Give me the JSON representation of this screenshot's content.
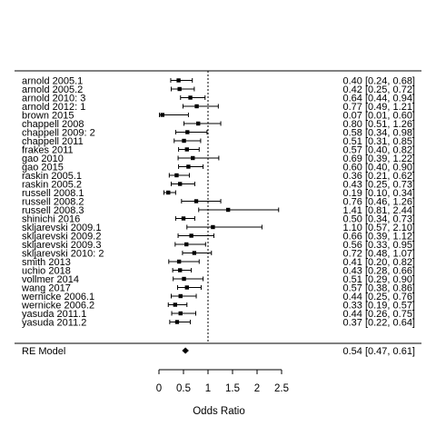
{
  "chart_data": {
    "type": "forest",
    "xlabel": "Odds Ratio",
    "x_ticks": [
      0,
      0.5,
      1,
      1.5,
      2,
      2.5
    ],
    "x_tick_labels": [
      "0",
      "0.5",
      "1",
      "1.5",
      "2",
      "2.5"
    ],
    "xlim": [
      0,
      2.5
    ],
    "reference_line": 1,
    "studies": [
      {
        "label": "arnold 2005.1",
        "or": 0.4,
        "lo": 0.24,
        "hi": 0.68,
        "text": "0.40 [0.24, 0.68]"
      },
      {
        "label": "arnold 2005.2",
        "or": 0.42,
        "lo": 0.25,
        "hi": 0.72,
        "text": "0.42 [0.25, 0.72]"
      },
      {
        "label": "arnold 2010: 3",
        "or": 0.64,
        "lo": 0.44,
        "hi": 0.94,
        "text": "0.64 [0.44, 0.94]"
      },
      {
        "label": "arnold 2012: 1",
        "or": 0.77,
        "lo": 0.49,
        "hi": 1.21,
        "text": "0.77 [0.49, 1.21]"
      },
      {
        "label": "brown 2015",
        "or": 0.07,
        "lo": 0.01,
        "hi": 0.6,
        "text": "0.07 [0.01, 0.60]"
      },
      {
        "label": "chappell 2008",
        "or": 0.8,
        "lo": 0.51,
        "hi": 1.26,
        "text": "0.80 [0.51, 1.26]"
      },
      {
        "label": "chappell 2009: 2",
        "or": 0.58,
        "lo": 0.34,
        "hi": 0.98,
        "text": "0.58 [0.34, 0.98]"
      },
      {
        "label": "chappell 2011",
        "or": 0.51,
        "lo": 0.31,
        "hi": 0.85,
        "text": "0.51 [0.31, 0.85]"
      },
      {
        "label": "frakes 2011",
        "or": 0.57,
        "lo": 0.4,
        "hi": 0.82,
        "text": "0.57 [0.40, 0.82]"
      },
      {
        "label": "gao 2010",
        "or": 0.69,
        "lo": 0.39,
        "hi": 1.22,
        "text": "0.69 [0.39, 1.22]"
      },
      {
        "label": "gao 2015",
        "or": 0.6,
        "lo": 0.4,
        "hi": 0.9,
        "text": "0.60 [0.40, 0.90]"
      },
      {
        "label": "raskin 2005.1",
        "or": 0.36,
        "lo": 0.21,
        "hi": 0.62,
        "text": "0.36 [0.21, 0.62]"
      },
      {
        "label": "raskin 2005.2",
        "or": 0.43,
        "lo": 0.25,
        "hi": 0.73,
        "text": "0.43 [0.25, 0.73]"
      },
      {
        "label": "russell 2008.1",
        "or": 0.19,
        "lo": 0.1,
        "hi": 0.34,
        "text": "0.19 [0.10, 0.34]"
      },
      {
        "label": "russell 2008.2",
        "or": 0.76,
        "lo": 0.46,
        "hi": 1.26,
        "text": "0.76 [0.46, 1.26]"
      },
      {
        "label": "russell 2008.3",
        "or": 1.41,
        "lo": 0.81,
        "hi": 2.44,
        "text": "1.41 [0.81, 2.44]"
      },
      {
        "label": "shinichi 2016",
        "or": 0.5,
        "lo": 0.34,
        "hi": 0.73,
        "text": "0.50 [0.34, 0.73]"
      },
      {
        "label": "skljarevski 2009.1",
        "or": 1.1,
        "lo": 0.57,
        "hi": 2.1,
        "text": "1.10 [0.57, 2.10]"
      },
      {
        "label": "skljarevski 2009.2",
        "or": 0.66,
        "lo": 0.39,
        "hi": 1.12,
        "text": "0.66 [0.39, 1.12]"
      },
      {
        "label": "skljarevski 2009.3",
        "or": 0.56,
        "lo": 0.33,
        "hi": 0.95,
        "text": "0.56 [0.33, 0.95]"
      },
      {
        "label": "skljarevski 2010: 2",
        "or": 0.72,
        "lo": 0.48,
        "hi": 1.07,
        "text": "0.72 [0.48, 1.07]"
      },
      {
        "label": "smith 2013",
        "or": 0.41,
        "lo": 0.2,
        "hi": 0.82,
        "text": "0.41 [0.20, 0.82]"
      },
      {
        "label": "uchio 2018",
        "or": 0.43,
        "lo": 0.28,
        "hi": 0.66,
        "text": "0.43 [0.28, 0.66]"
      },
      {
        "label": "vollmer 2014",
        "or": 0.51,
        "lo": 0.29,
        "hi": 0.9,
        "text": "0.51 [0.29, 0.90]"
      },
      {
        "label": "wang 2017",
        "or": 0.57,
        "lo": 0.38,
        "hi": 0.86,
        "text": "0.57 [0.38, 0.86]"
      },
      {
        "label": "wernicke 2006.1",
        "or": 0.44,
        "lo": 0.25,
        "hi": 0.76,
        "text": "0.44 [0.25, 0.76]"
      },
      {
        "label": "wernicke 2006.2",
        "or": 0.33,
        "lo": 0.19,
        "hi": 0.57,
        "text": "0.33 [0.19, 0.57]"
      },
      {
        "label": "yasuda 2011.1",
        "or": 0.44,
        "lo": 0.26,
        "hi": 0.75,
        "text": "0.44 [0.26, 0.75]"
      },
      {
        "label": "yasuda 2011.2",
        "or": 0.37,
        "lo": 0.22,
        "hi": 0.64,
        "text": "0.37 [0.22, 0.64]"
      }
    ],
    "summary": {
      "label": "RE Model",
      "or": 0.54,
      "lo": 0.47,
      "hi": 0.61,
      "text": "0.54 [0.47, 0.61]"
    }
  }
}
